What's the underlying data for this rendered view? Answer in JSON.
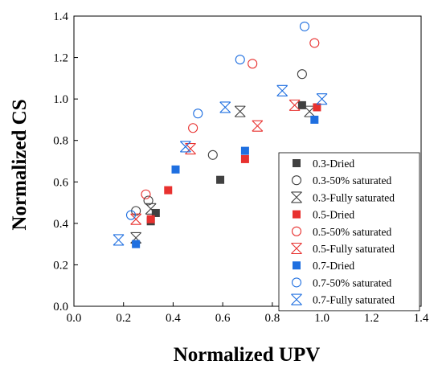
{
  "chart_data": {
    "type": "scatter",
    "xlabel": "Normalized UPV",
    "ylabel": "Normalized CS",
    "xlim": [
      0.0,
      1.4
    ],
    "ylim": [
      0.0,
      1.4
    ],
    "xticks": [
      "0.0",
      "0.2",
      "0.4",
      "0.6",
      "0.8",
      "1.0",
      "1.2",
      "1.4"
    ],
    "yticks": [
      "0.0",
      "0.2",
      "0.4",
      "0.6",
      "0.8",
      "1.0",
      "1.2",
      "1.4"
    ],
    "grid": false,
    "legend_position": "bottom-right",
    "colors": {
      "0.3": "#404040",
      "0.5": "#e8312f",
      "0.7": "#1f6fe0"
    },
    "series": [
      {
        "name": "0.3-Dried",
        "group": "0.3",
        "marker": "square",
        "points": [
          [
            0.31,
            0.41
          ],
          [
            0.33,
            0.45
          ],
          [
            0.59,
            0.61
          ],
          [
            0.92,
            0.97
          ]
        ]
      },
      {
        "name": "0.3-50% saturated",
        "group": "0.3",
        "marker": "circle",
        "points": [
          [
            0.25,
            0.46
          ],
          [
            0.3,
            0.51
          ],
          [
            0.56,
            0.73
          ],
          [
            0.92,
            1.12
          ]
        ]
      },
      {
        "name": "0.3-Fully saturated",
        "group": "0.3",
        "marker": "hourglass",
        "points": [
          [
            0.25,
            0.33
          ],
          [
            0.31,
            0.47
          ],
          [
            0.67,
            0.94
          ],
          [
            0.95,
            0.94
          ]
        ]
      },
      {
        "name": "0.5-Dried",
        "group": "0.5",
        "marker": "square",
        "points": [
          [
            0.31,
            0.42
          ],
          [
            0.38,
            0.56
          ],
          [
            0.69,
            0.71
          ],
          [
            0.98,
            0.96
          ]
        ]
      },
      {
        "name": "0.5-50% saturated",
        "group": "0.5",
        "marker": "circle",
        "points": [
          [
            0.29,
            0.54
          ],
          [
            0.48,
            0.86
          ],
          [
            0.72,
            1.17
          ],
          [
            0.97,
            1.27
          ]
        ]
      },
      {
        "name": "0.5-Fully saturated",
        "group": "0.5",
        "marker": "hourglass",
        "points": [
          [
            0.25,
            0.42
          ],
          [
            0.47,
            0.76
          ],
          [
            0.74,
            0.87
          ],
          [
            0.89,
            0.97
          ]
        ]
      },
      {
        "name": "0.7-Dried",
        "group": "0.7",
        "marker": "square",
        "points": [
          [
            0.25,
            0.3
          ],
          [
            0.41,
            0.66
          ],
          [
            0.69,
            0.75
          ],
          [
            0.97,
            0.9
          ]
        ]
      },
      {
        "name": "0.7-50% saturated",
        "group": "0.7",
        "marker": "circle",
        "points": [
          [
            0.23,
            0.44
          ],
          [
            0.5,
            0.93
          ],
          [
            0.67,
            1.19
          ],
          [
            0.93,
            1.35
          ]
        ]
      },
      {
        "name": "0.7-Fully saturated",
        "group": "0.7",
        "marker": "hourglass",
        "points": [
          [
            0.18,
            0.32
          ],
          [
            0.45,
            0.77
          ],
          [
            0.61,
            0.96
          ],
          [
            0.84,
            1.04
          ],
          [
            1.0,
            1.0
          ]
        ]
      }
    ]
  }
}
